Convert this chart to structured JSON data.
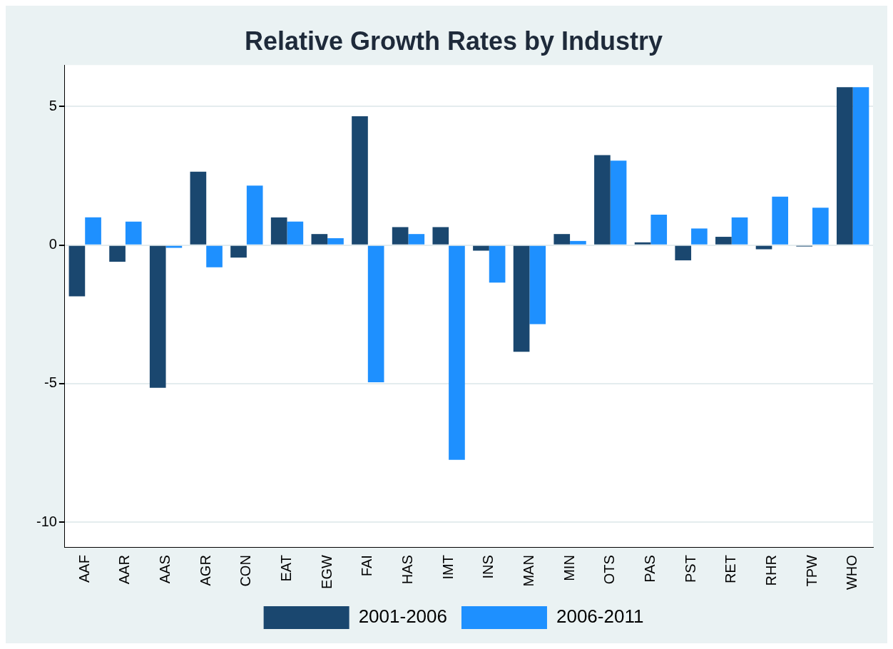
{
  "chart_data": {
    "type": "bar",
    "title": "Relative Growth Rates by Industry",
    "categories": [
      "AAF",
      "AAR",
      "AAS",
      "AGR",
      "CON",
      "EAT",
      "EGW",
      "FAI",
      "HAS",
      "IMT",
      "INS",
      "MAN",
      "MIN",
      "OTS",
      "PAS",
      "PST",
      "RET",
      "RHR",
      "TPW",
      "WHO"
    ],
    "series": [
      {
        "name": "2001-2006",
        "color": "#1a476f",
        "values": [
          -1.85,
          -0.6,
          -5.15,
          2.65,
          -0.45,
          1.0,
          0.4,
          4.65,
          0.65,
          0.65,
          -0.2,
          -3.85,
          0.4,
          3.25,
          0.1,
          -0.55,
          0.3,
          -0.15,
          -0.05,
          5.7
        ]
      },
      {
        "name": "2006-2011",
        "color": "#1e90ff",
        "values": [
          1.0,
          0.85,
          -0.1,
          -0.8,
          2.15,
          0.85,
          0.25,
          -4.95,
          0.4,
          -7.75,
          -1.35,
          -2.85,
          0.15,
          3.05,
          1.1,
          0.6,
          1.0,
          1.75,
          1.35,
          5.7
        ]
      }
    ],
    "ylim": [
      -10.9,
      6.5
    ],
    "yticks": [
      -10,
      -5,
      0,
      5
    ],
    "grid": "y",
    "legend": "bottom"
  }
}
